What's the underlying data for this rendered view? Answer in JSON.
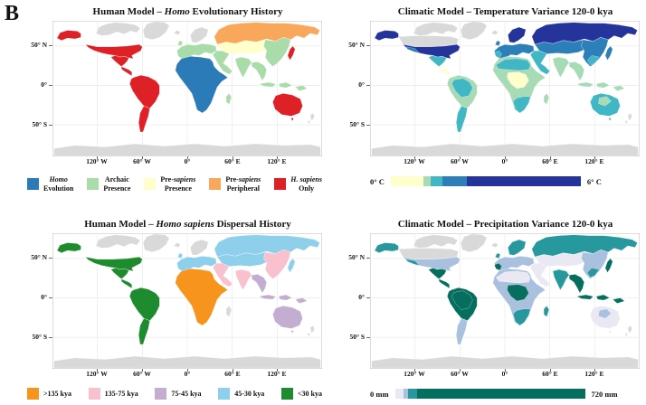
{
  "figure_label": "B",
  "axes": {
    "x": [
      "120° W",
      "60° W",
      "0°",
      "60° E",
      "120° E"
    ],
    "y": [
      "50° N",
      "0°",
      "50° S"
    ]
  },
  "panels": [
    {
      "title": {
        "pre": "Human Model – ",
        "it": "Homo",
        "post": " Evolutionary History"
      }
    },
    {
      "title": {
        "pre": "Climatic Model – Temperature Variance 120-0 kya",
        "it": "",
        "post": ""
      }
    },
    {
      "title": {
        "pre": "Human Model – ",
        "it": "Homo sapiens",
        "post": " Dispersal History"
      }
    },
    {
      "title": {
        "pre": "Climatic Model – Precipitation Variance 120-0 kya",
        "it": "",
        "post": ""
      }
    }
  ],
  "colors": {
    "no_data_land": "#D9D9D9",
    "ocean": "#FFFFFF",
    "gridline": "#E9E9E9"
  },
  "chart_data": [
    {
      "type": "choropleth_map",
      "title": "Human Model - Homo Evolutionary History",
      "legend_position": "bottom",
      "legend": [
        {
          "color": "#2B7BB9",
          "l1a": "",
          "l1i": "Homo",
          "l2": "Evolution",
          "label": "Homo Evolution"
        },
        {
          "color": "#A9DCA9",
          "l1a": "Archaic",
          "l1i": "",
          "l2": "Presence",
          "label": "Archaic Presence"
        },
        {
          "color": "#FFFFCC",
          "l1a": "Pre-",
          "l1i": "sapiens",
          "l2": "Presence",
          "label": "Pre-sapiens Presence"
        },
        {
          "color": "#F9A75B",
          "l1a": "Pre-",
          "l1i": "sapiens",
          "l2": "Peripheral",
          "label": "Pre-sapiens Peripheral"
        },
        {
          "color": "#DE2126",
          "l1a": "",
          "l1i": "H. sapiens",
          "l2": "Only",
          "label": "H. sapiens Only"
        }
      ],
      "category_regions": {
        "Homo Evolution": [
          "Africa"
        ],
        "Archaic Presence": [
          "Europe",
          "UK",
          "Middle East",
          "South Asia",
          "East Asia",
          "Southeast Asia",
          "Indonesia",
          "Madagascar"
        ],
        "Pre-sapiens Presence": [
          "Central Asia"
        ],
        "Pre-sapiens Peripheral": [
          "Siberia"
        ],
        "H. sapiens Only": [
          "North America",
          "South America",
          "Australia",
          "Japan",
          "Alaska"
        ]
      },
      "region_colors": {
        "greenland": "#D9D9D9",
        "arctic": "#D9D9D9",
        "iceland": "#D9D9D9",
        "scandinavia": "#D9D9D9",
        "nz": "#D9D9D9",
        "antarctica": "#D9D9D9",
        "canada": "#FFFFFF",
        "alaska": "#DE2126",
        "usa": "#DE2126",
        "mexico": "#DE2126",
        "camerica": "#DE2126",
        "brazil": "#DE2126",
        "scone": "#DE2126",
        "australia": "#DE2126",
        "japan": "#DE2126",
        "africa": "#2B7BB9",
        "europe": "#A9DCA9",
        "uk": "#A9DCA9",
        "eastasia": "#A9DCA9",
        "middleeast": "#A9DCA9",
        "southasia": "#A9DCA9",
        "seasia": "#A9DCA9",
        "indonesia": "#A9DCA9",
        "madagascar": "#A9DCA9",
        "centralasia": "#FFFFCC",
        "siberia": "#F9A75B",
        "sahara": "none",
        "congo": "none",
        "safrica": "none",
        "iberia": "none",
        "schina": "none",
        "ausc": "none",
        "amazon": "none",
        "uswest": "none"
      }
    },
    {
      "type": "choropleth_map",
      "title": "Climatic Model - Temperature Variance 120-0 kya",
      "scale": {
        "min": 0,
        "max": 6,
        "unit": "°C"
      },
      "colorbar": {
        "min_label": "0° C",
        "max_label": "6° C",
        "segments": [
          {
            "color": "#FFFFCC",
            "frac": 0.17
          },
          {
            "color": "#A7DBB5",
            "frac": 0.04
          },
          {
            "color": "#41B6C4",
            "frac": 0.06
          },
          {
            "color": "#2C7FB8",
            "frac": 0.13
          },
          {
            "color": "#24349A",
            "frac": 0.6
          }
        ]
      },
      "region_colors": {
        "greenland": "#D9D9D9",
        "arctic": "#D9D9D9",
        "iceland": "#D9D9D9",
        "canada": "#D9D9D9",
        "nz": "#D9D9D9",
        "antarctica": "#D9D9D9",
        "alaska": "#24349A",
        "usa": "#24349A",
        "siberia": "#24349A",
        "scandinavia": "#24349A",
        "europe": "#2C7FB8",
        "uk": "#2C7FB8",
        "centralasia": "#2C7FB8",
        "eastasia": "#2C7FB8",
        "japan": "#2C7FB8",
        "mexico": "#41B6C4",
        "scone": "#41B6C4",
        "middleeast": "#41B6C4",
        "australia": "#41B6C4",
        "camerica": "#FFFFCC",
        "brazil": "#A7DBB5",
        "africa": "#A7DBB5",
        "southasia": "#A7DBB5",
        "seasia": "#A7DBB5",
        "indonesia": "#A7DBB5",
        "madagascar": "#A7DBB5",
        "sahara": "#41B6C4",
        "congo": "#FFFFCC",
        "safrica": "#41B6C4",
        "iberia": "#41B6C4",
        "schina": "#41B6C4",
        "ausc": "#A7DBB5",
        "amazon": "#41B6C4",
        "uswest": "#2C7FB8"
      }
    },
    {
      "type": "choropleth_map",
      "title": "Human Model - Homo sapiens Dispersal History",
      "legend_position": "bottom",
      "legend": [
        {
          "color": "#F7941D",
          "l1a": ">135 kya",
          "l1i": "",
          "l2": "",
          "label": ">135 kya"
        },
        {
          "color": "#F9C0CD",
          "l1a": "135-75 kya",
          "l1i": "",
          "l2": "",
          "label": "135-75 kya"
        },
        {
          "color": "#C3ADD1",
          "l1a": "75-45 kya",
          "l1i": "",
          "l2": "",
          "label": "75-45 kya"
        },
        {
          "color": "#8ED0EC",
          "l1a": "45-30 kya",
          "l1i": "",
          "l2": "",
          "label": "45-30 kya"
        },
        {
          "color": "#1E8B2E",
          "l1a": "<30 kya",
          "l1i": "",
          "l2": "",
          "label": "<30 kya"
        }
      ],
      "category_regions": {
        ">135 kya": [
          "Africa"
        ],
        "135-75 kya": [
          "Middle East",
          "South Asia",
          "East Asia"
        ],
        "75-45 kya": [
          "Southeast Asia",
          "Indonesia",
          "Australia"
        ],
        "45-30 kya": [
          "Europe",
          "UK",
          "Siberia",
          "Central Asia",
          "Japan"
        ],
        "<30 kya": [
          "North America",
          "South America",
          "Alaska"
        ]
      },
      "region_colors": {
        "greenland": "#D9D9D9",
        "arctic": "#D9D9D9",
        "iceland": "#D9D9D9",
        "scandinavia": "#D9D9D9",
        "nz": "#D9D9D9",
        "antarctica": "#D9D9D9",
        "madagascar": "#D9D9D9",
        "canada": "#FFFFFF",
        "africa": "#F7941D",
        "middleeast": "#F9C0CD",
        "southasia": "#F9C0CD",
        "eastasia": "#F9C0CD",
        "seasia": "#C3ADD1",
        "indonesia": "#C3ADD1",
        "australia": "#C3ADD1",
        "europe": "#8ED0EC",
        "uk": "#8ED0EC",
        "siberia": "#8ED0EC",
        "centralasia": "#8ED0EC",
        "japan": "#8ED0EC",
        "alaska": "#1E8B2E",
        "usa": "#1E8B2E",
        "mexico": "#1E8B2E",
        "camerica": "#1E8B2E",
        "brazil": "#1E8B2E",
        "scone": "#1E8B2E",
        "sahara": "none",
        "congo": "none",
        "safrica": "none",
        "iberia": "none",
        "schina": "none",
        "ausc": "none",
        "amazon": "none",
        "uswest": "none"
      }
    },
    {
      "type": "choropleth_map",
      "title": "Climatic Model - Precipitation Variance 120-0 kya",
      "scale": {
        "min": 0,
        "max": 720,
        "unit": "mm"
      },
      "colorbar": {
        "min_label": "0 mm",
        "max_label": "720 mm",
        "segments": [
          {
            "color": "#E9E8F3",
            "frac": 0.045
          },
          {
            "color": "#A9C0DE",
            "frac": 0.025
          },
          {
            "color": "#27989D",
            "frac": 0.045
          },
          {
            "color": "#066E5F",
            "frac": 0.885
          }
        ]
      },
      "region_colors": {
        "greenland": "#D9D9D9",
        "arctic": "#D9D9D9",
        "iceland": "#D9D9D9",
        "canada": "#D9D9D9",
        "nz": "#D9D9D9",
        "antarctica": "#D9D9D9",
        "alaska": "#27989D",
        "uk": "#27989D",
        "scandinavia": "#27989D",
        "siberia": "#27989D",
        "southasia": "#27989D",
        "madagascar": "#27989D",
        "scone": "#A9C0DE",
        "usa": "#A9C0DE",
        "europe": "#A9C0DE",
        "eastasia": "#A9C0DE",
        "africa": "#A9C0DE",
        "mexico": "#066E5F",
        "camerica": "#066E5F",
        "brazil": "#066E5F",
        "seasia": "#066E5F",
        "indonesia": "#066E5F",
        "japan": "#066E5F",
        "centralasia": "#E9E8F3",
        "middleeast": "#E9E8F3",
        "australia": "#E9E8F3",
        "sahara": "#E9E8F3",
        "congo": "#066E5F",
        "safrica": "#27989D",
        "iberia": "#066E5F",
        "schina": "#27989D",
        "ausc": "#A9C0DE",
        "amazon": "#066E5F",
        "uswest": "#27989D"
      }
    }
  ]
}
